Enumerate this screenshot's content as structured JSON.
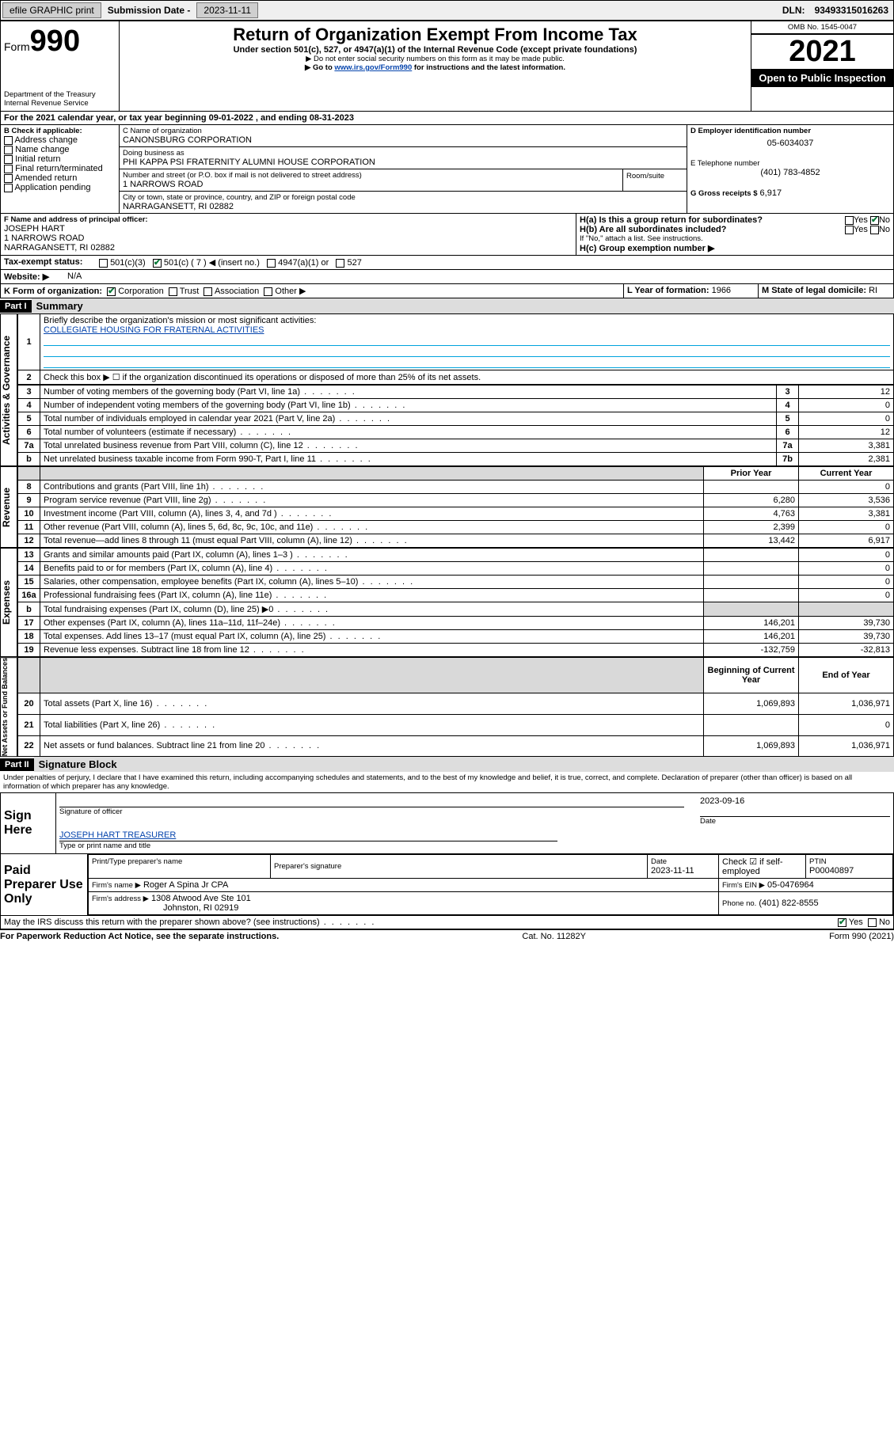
{
  "topbar": {
    "efile": "efile GRAPHIC print",
    "sub_lbl": "Submission Date -",
    "sub_date": "2023-11-11",
    "dln_lbl": "DLN:",
    "dln": "93493315016263"
  },
  "header": {
    "form_word": "Form",
    "form_num": "990",
    "dept": "Department of the Treasury",
    "irs": "Internal Revenue Service",
    "title": "Return of Organization Exempt From Income Tax",
    "line1": "Under section 501(c), 527, or 4947(a)(1) of the Internal Revenue Code (except private foundations)",
    "line2": "▶ Do not enter social security numbers on this form as it may be made public.",
    "line3a": "▶ Go to ",
    "line3_link": "www.irs.gov/Form990",
    "line3b": " for instructions and the latest information.",
    "omb": "OMB No. 1545-0047",
    "year": "2021",
    "open": "Open to Public Inspection"
  },
  "sectionA": {
    "a_line": "For the 2021 calendar year, or tax year beginning 09-01-2022   , and ending 08-31-2023",
    "b_lbl": "B Check if applicable:",
    "b_items": [
      "Address change",
      "Name change",
      "Initial return",
      "Final return/terminated",
      "Amended return",
      "Application pending"
    ],
    "c_lbl": "C Name of organization",
    "c_name": "CANONSBURG CORPORATION",
    "dba_lbl": "Doing business as",
    "dba": "PHI KAPPA PSI FRATERNITY ALUMNI HOUSE CORPORATION",
    "addr_lbl": "Number and street (or P.O. box if mail is not delivered to street address)",
    "room_lbl": "Room/suite",
    "addr": "1 NARROWS ROAD",
    "city_lbl": "City or town, state or province, country, and ZIP or foreign postal code",
    "city": "NARRAGANSETT, RI  02882",
    "d_lbl": "D Employer identification number",
    "d_ein": "05-6034037",
    "e_lbl": "E Telephone number",
    "e_tel": "(401) 783-4852",
    "g_lbl": "G Gross receipts $",
    "g_val": "6,917",
    "f_lbl": "F  Name and address of principal officer:",
    "f_name": "JOSEPH HART",
    "f_addr1": "1 NARROWS ROAD",
    "f_addr2": "NARRAGANSETT, RI  02882",
    "h_a": "H(a)  Is this a group return for subordinates?",
    "h_b": "H(b)  Are all subordinates included?",
    "h_note": "If \"No,\" attach a list. See instructions.",
    "h_c": "H(c)  Group exemption number ▶",
    "yes": "Yes",
    "no": "No",
    "i_lbl": "Tax-exempt status:",
    "i_501c3": "501(c)(3)",
    "i_501c": "501(c) ( 7 ) ◀ (insert no.)",
    "i_4947": "4947(a)(1) or",
    "i_527": "527",
    "j_lbl": "Website: ▶",
    "j_val": "N/A",
    "k_lbl": "K Form of organization:",
    "k_corp": "Corporation",
    "k_trust": "Trust",
    "k_assoc": "Association",
    "k_other": "Other ▶",
    "l_lbl": "L Year of formation:",
    "l_val": "1966",
    "m_lbl": "M State of legal domicile:",
    "m_val": "RI"
  },
  "part1": {
    "hdr": "Part I",
    "title": "Summary",
    "q1": "Briefly describe the organization's mission or most significant activities:",
    "q1_ans": "COLLEGIATE HOUSING FOR FRATERNAL ACTIVITIES",
    "q2": "Check this box ▶ ☐  if the organization discontinued its operations or disposed of more than 25% of its net assets.",
    "side1": "Activities & Governance",
    "side2": "Revenue",
    "side3": "Expenses",
    "side4": "Net Assets or Fund Balances",
    "gov_rows": [
      {
        "n": "3",
        "t": "Number of voting members of the governing body (Part VI, line 1a)",
        "k": "3",
        "v": "12"
      },
      {
        "n": "4",
        "t": "Number of independent voting members of the governing body (Part VI, line 1b)",
        "k": "4",
        "v": "0"
      },
      {
        "n": "5",
        "t": "Total number of individuals employed in calendar year 2021 (Part V, line 2a)",
        "k": "5",
        "v": "0"
      },
      {
        "n": "6",
        "t": "Total number of volunteers (estimate if necessary)",
        "k": "6",
        "v": "12"
      },
      {
        "n": "7a",
        "t": "Total unrelated business revenue from Part VIII, column (C), line 12",
        "k": "7a",
        "v": "3,381"
      },
      {
        "n": "b",
        "t": "Net unrelated business taxable income from Form 990-T, Part I, line 11",
        "k": "7b",
        "v": "2,381"
      }
    ],
    "col_prior": "Prior Year",
    "col_curr": "Current Year",
    "rev_rows": [
      {
        "n": "8",
        "t": "Contributions and grants (Part VIII, line 1h)",
        "p": "",
        "c": "0"
      },
      {
        "n": "9",
        "t": "Program service revenue (Part VIII, line 2g)",
        "p": "6,280",
        "c": "3,536"
      },
      {
        "n": "10",
        "t": "Investment income (Part VIII, column (A), lines 3, 4, and 7d )",
        "p": "4,763",
        "c": "3,381"
      },
      {
        "n": "11",
        "t": "Other revenue (Part VIII, column (A), lines 5, 6d, 8c, 9c, 10c, and 11e)",
        "p": "2,399",
        "c": "0"
      },
      {
        "n": "12",
        "t": "Total revenue—add lines 8 through 11 (must equal Part VIII, column (A), line 12)",
        "p": "13,442",
        "c": "6,917"
      }
    ],
    "exp_rows": [
      {
        "n": "13",
        "t": "Grants and similar amounts paid (Part IX, column (A), lines 1–3 )",
        "p": "",
        "c": "0"
      },
      {
        "n": "14",
        "t": "Benefits paid to or for members (Part IX, column (A), line 4)",
        "p": "",
        "c": "0"
      },
      {
        "n": "15",
        "t": "Salaries, other compensation, employee benefits (Part IX, column (A), lines 5–10)",
        "p": "",
        "c": "0"
      },
      {
        "n": "16a",
        "t": "Professional fundraising fees (Part IX, column (A), line 11e)",
        "p": "",
        "c": "0"
      },
      {
        "n": "b",
        "t": "Total fundraising expenses (Part IX, column (D), line 25) ▶0",
        "p": "SHADE",
        "c": "SHADE"
      },
      {
        "n": "17",
        "t": "Other expenses (Part IX, column (A), lines 11a–11d, 11f–24e)",
        "p": "146,201",
        "c": "39,730"
      },
      {
        "n": "18",
        "t": "Total expenses. Add lines 13–17 (must equal Part IX, column (A), line 25)",
        "p": "146,201",
        "c": "39,730"
      },
      {
        "n": "19",
        "t": "Revenue less expenses. Subtract line 18 from line 12",
        "p": "-132,759",
        "c": "-32,813"
      }
    ],
    "col_beg": "Beginning of Current Year",
    "col_end": "End of Year",
    "net_rows": [
      {
        "n": "20",
        "t": "Total assets (Part X, line 16)",
        "p": "1,069,893",
        "c": "1,036,971"
      },
      {
        "n": "21",
        "t": "Total liabilities (Part X, line 26)",
        "p": "",
        "c": "0"
      },
      {
        "n": "22",
        "t": "Net assets or fund balances. Subtract line 21 from line 20",
        "p": "1,069,893",
        "c": "1,036,971"
      }
    ]
  },
  "part2": {
    "hdr": "Part II",
    "title": "Signature Block",
    "decl": "Under penalties of perjury, I declare that I have examined this return, including accompanying schedules and statements, and to the best of my knowledge and belief, it is true, correct, and complete. Declaration of preparer (other than officer) is based on all information of which preparer has any knowledge.",
    "sign_here": "Sign Here",
    "sig_officer": "Signature of officer",
    "sig_date": "2023-09-16",
    "date_lbl": "Date",
    "officer_name": "JOSEPH HART TREASURER",
    "type_name": "Type or print name and title",
    "paid_lbl": "Paid Preparer Use Only",
    "pp_name_lbl": "Print/Type preparer's name",
    "pp_sig_lbl": "Preparer's signature",
    "pp_date_lbl": "Date",
    "pp_date": "2023-11-11",
    "pp_check": "Check ☑ if self-employed",
    "ptin_lbl": "PTIN",
    "ptin": "P00040897",
    "firm_name_lbl": "Firm's name    ▶",
    "firm_name": "Roger A Spina Jr CPA",
    "firm_ein_lbl": "Firm's EIN ▶",
    "firm_ein": "05-0476964",
    "firm_addr_lbl": "Firm's address ▶",
    "firm_addr1": "1308 Atwood Ave Ste 101",
    "firm_addr2": "Johnston, RI  02919",
    "phone_lbl": "Phone no.",
    "phone": "(401) 822-8555",
    "discuss": "May the IRS discuss this return with the preparer shown above? (see instructions)",
    "fn_left": "For Paperwork Reduction Act Notice, see the separate instructions.",
    "cat": "Cat. No. 11282Y",
    "fn_right": "Form 990 (2021)"
  }
}
